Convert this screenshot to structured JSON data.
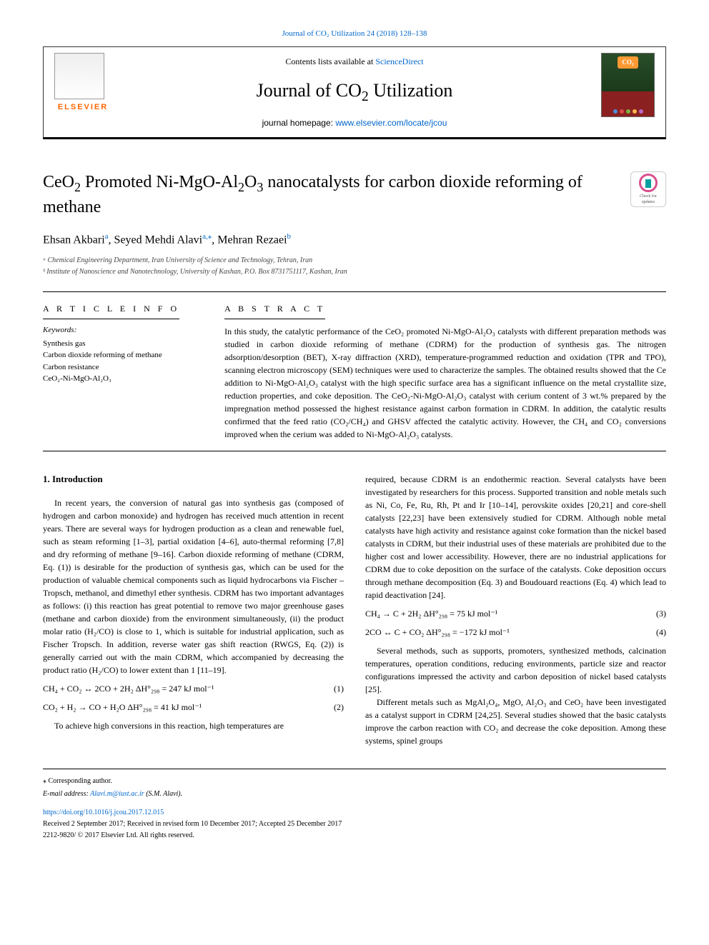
{
  "top_citation": "Journal of CO₂ Utilization 24 (2018) 128–138",
  "header": {
    "contents_text": "Contents lists available at ",
    "sciencedirect": "ScienceDirect",
    "journal_title": "Journal of CO₂ Utilization",
    "homepage_label": "journal homepage: ",
    "homepage_url": "www.elsevier.com/locate/jcou",
    "elsevier_label": "ELSEVIER",
    "co2_badge": "CO₂"
  },
  "check_updates": {
    "line1": "Check for",
    "line2": "updates"
  },
  "article": {
    "title": "CeO₂ Promoted Ni-MgO-Al₂O₃ nanocatalysts for carbon dioxide reforming of methane",
    "authors_html": "Ehsan Akbariᵃ, Seyed Mehdi Alaviᵃ,*, Mehran Rezaeiᵇ",
    "author1": "Ehsan Akbari",
    "author1_aff": "a",
    "author2": "Seyed Mehdi Alavi",
    "author2_aff": "a,",
    "author2_corr": "⁎",
    "author3": "Mehran Rezaei",
    "author3_aff": "b",
    "aff_a": "ᵃ Chemical Engineering Department, Iran University of Science and Technology, Tehran, Iran",
    "aff_b": "ᵇ Institute of Nanoscience and Nanotechnology, University of Kashan, P.O. Box 8731751117, Kashan, Iran"
  },
  "info": {
    "article_info_label": "A R T I C L E  I N F O",
    "abstract_label": "A B S T R A C T",
    "keywords_label": "Keywords:",
    "keywords": [
      "Synthesis gas",
      "Carbon dioxide reforming of methane",
      "Carbon resistance",
      "CeO₂-Ni-MgO-Al₂O₃"
    ],
    "abstract_text": "In this study, the catalytic performance of the CeO₂ promoted Ni-MgO-Al₂O₃ catalysts with different preparation methods was studied in carbon dioxide reforming of methane (CDRM) for the production of synthesis gas. The nitrogen adsorption/desorption (BET), X-ray diffraction (XRD), temperature-programmed reduction and oxidation (TPR and TPO), scanning electron microscopy (SEM) techniques were used to characterize the samples. The obtained results showed that the Ce addition to Ni-MgO-Al₂O₃ catalyst with the high specific surface area has a significant influence on the metal crystallite size, reduction properties, and coke deposition. The CeO₂-Ni-MgO-Al₂O₃ catalyst with cerium content of 3 wt.% prepared by the impregnation method possessed the highest resistance against carbon formation in CDRM. In addition, the catalytic results confirmed that the feed ratio (CO₂/CH₄) and GHSV affected the catalytic activity. However, the CH₄ and CO₂ conversions improved when the cerium was added to Ni-MgO-Al₂O₃ catalysts."
  },
  "body": {
    "intro_heading": "1. Introduction",
    "col1_p1": "In recent years, the conversion of natural gas into synthesis gas (composed of hydrogen and carbon monoxide) and hydrogen has received much attention in recent years. There are several ways for hydrogen production as a clean and renewable fuel, such as steam reforming [1–3], partial oxidation [4–6], auto-thermal reforming [7,8] and dry reforming of methane [9–16]. Carbon dioxide reforming of methane (CDRM, Eq. (1)) is desirable for the production of synthesis gas, which can be used for the production of valuable chemical components such as liquid hydrocarbons via Fischer – Tropsch, methanol, and dimethyl ether synthesis. CDRM has two important advantages as follows: (i) this reaction has great potential to remove two major greenhouse gases (methane and carbon dioxide) from the environment simultaneously, (ii) the product molar ratio (H₂/CO) is close to 1, which is suitable for industrial application, such as Fischer Tropsch. In addition, reverse water gas shift reaction (RWGS, Eq. (2)) is generally carried out with the main CDRM, which accompanied by decreasing the product ratio (H₂/CO) to lower extent than 1 [11–19].",
    "eq1_lhs": "CH₄ + CO₂ ↔ 2CO + 2H₂ ΔH°₂₉₈ = 247 kJ mol⁻¹",
    "eq1_num": "(1)",
    "eq2_lhs": "CO₂ + H₂ → CO + H₂O ΔH°₂₉₈ = 41 kJ mol⁻¹",
    "eq2_num": "(2)",
    "col1_p2": "To achieve high conversions in this reaction, high temperatures are",
    "col2_p1": "required, because CDRM is an endothermic reaction. Several catalysts have been investigated by researchers for this process. Supported transition and noble metals such as Ni, Co, Fe, Ru, Rh, Pt and Ir [10–14], perovskite oxides [20,21] and core-shell catalysts [22,23] have been extensively studied for CDRM. Although noble metal catalysts have high activity and resistance against coke formation than the nickel based catalysts in CDRM, but their industrial uses of these materials are prohibited due to the higher cost and lower accessibility. However, there are no industrial applications for CDRM due to coke deposition on the surface of the catalysts. Coke deposition occurs through methane decomposition (Eq. 3) and Boudouard reactions (Eq. 4) which lead to rapid deactivation [24].",
    "eq3_lhs": "CH₄ → C + 2H₂ ΔH°₂₉₈ = 75 kJ mol⁻¹",
    "eq3_num": "(3)",
    "eq4_lhs": "2CO ↔ C + CO₂ ΔH°₂₉₈ = −172 kJ mol⁻¹",
    "eq4_num": "(4)",
    "col2_p2": "Several methods, such as supports, promoters, synthesized methods, calcination temperatures, operation conditions, reducing environments, particle size and reactor configurations impressed the activity and carbon deposition of nickel based catalysts [25].",
    "col2_p3": "Different metals such as MgAl₂O₄, MgO, Al₂O₃ and CeO₂ have been investigated as a catalyst support in CDRM [24,25]. Several studies showed that the basic catalysts improve the carbon reaction with CO₂ and decrease the coke deposition. Among these systems, spinel groups"
  },
  "footer": {
    "corr_marker": "⁎",
    "corr_text": " Corresponding author.",
    "email_label": "E-mail address: ",
    "email": "Alavi.m@iust.ac.ir",
    "email_name": " (S.M. Alavi).",
    "doi": "https://doi.org/10.1016/j.jcou.2017.12.015",
    "dates": "Received 2 September 2017; Received in revised form 10 December 2017; Accepted 25 December 2017",
    "copyright": "2212-9820/ © 2017 Elsevier Ltd. All rights reserved."
  },
  "colors": {
    "link": "#0066cc",
    "border": "#000000",
    "elsevier_orange": "#ff6600",
    "check_pink": "#d94f8e",
    "check_teal": "#00a0a0"
  }
}
